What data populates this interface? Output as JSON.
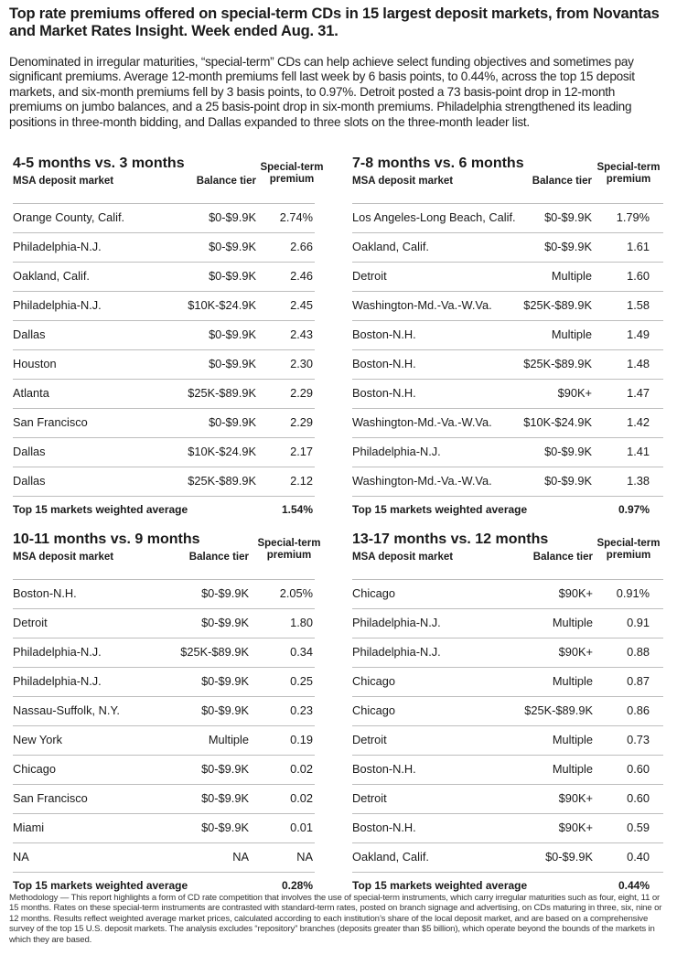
{
  "title": "Top rate premiums offered on special-term CDs in 15 largest deposit markets, from Novantas and Market Rates Insight. Week ended Aug. 31.",
  "intro": "Denominated in irregular maturities, “special-term” CDs can help achieve select funding objectives and sometimes pay significant premiums. Average 12-month premiums fell last week by 6 basis points, to 0.44%, across the top 15 deposit markets, and six-month premiums fell by 3 basis points, to 0.97%. Detroit posted a 73 basis-point drop in 12-month premiums on jumbo balances, and a 25 basis-point drop in six-month premiums. Philadelphia strengthened its leading positions in three-month bidding, and Dallas expanded to three slots on the three-month leader list.",
  "headers": {
    "market": "MSA deposit market",
    "tier": "Balance tier",
    "premium_line1": "Special-term",
    "premium_line2": "premium"
  },
  "panels": [
    {
      "title": "4-5 months vs. 3 months",
      "rows": [
        {
          "market": "Orange County, Calif.",
          "tier": "$0-$9.9K",
          "premium": "2.74%"
        },
        {
          "market": "Philadelphia-N.J.",
          "tier": "$0-$9.9K",
          "premium": "2.66"
        },
        {
          "market": "Oakland, Calif.",
          "tier": "$0-$9.9K",
          "premium": "2.46"
        },
        {
          "market": "Philadelphia-N.J.",
          "tier": "$10K-$24.9K",
          "premium": "2.45"
        },
        {
          "market": "Dallas",
          "tier": "$0-$9.9K",
          "premium": "2.43"
        },
        {
          "market": "Houston",
          "tier": "$0-$9.9K",
          "premium": "2.30"
        },
        {
          "market": "Atlanta",
          "tier": "$25K-$89.9K",
          "premium": "2.29"
        },
        {
          "market": "San Francisco",
          "tier": "$0-$9.9K",
          "premium": "2.29"
        },
        {
          "market": "Dallas",
          "tier": "$10K-$24.9K",
          "premium": "2.17"
        },
        {
          "market": "Dallas",
          "tier": "$25K-$89.9K",
          "premium": "2.12"
        }
      ],
      "avg_label": "Top 15 markets weighted average",
      "avg_value": "1.54%"
    },
    {
      "title": "7-8 months vs. 6 months",
      "rows": [
        {
          "market": "Los Angeles-Long Beach, Calif.",
          "tier": "$0-$9.9K",
          "premium": "1.79%"
        },
        {
          "market": "Oakland, Calif.",
          "tier": "$0-$9.9K",
          "premium": "1.61"
        },
        {
          "market": "Detroit",
          "tier": "Multiple",
          "premium": "1.60"
        },
        {
          "market": "Washington-Md.-Va.-W.Va.",
          "tier": "$25K-$89.9K",
          "premium": "1.58"
        },
        {
          "market": "Boston-N.H.",
          "tier": "Multiple",
          "premium": "1.49"
        },
        {
          "market": "Boston-N.H.",
          "tier": "$25K-$89.9K",
          "premium": "1.48"
        },
        {
          "market": "Boston-N.H.",
          "tier": "$90K+",
          "premium": "1.47"
        },
        {
          "market": "Washington-Md.-Va.-W.Va.",
          "tier": "$10K-$24.9K",
          "premium": "1.42"
        },
        {
          "market": "Philadelphia-N.J.",
          "tier": "$0-$9.9K",
          "premium": "1.41"
        },
        {
          "market": "Washington-Md.-Va.-W.Va.",
          "tier": "$0-$9.9K",
          "premium": "1.38"
        }
      ],
      "avg_label": "Top 15 markets weighted average",
      "avg_value": "0.97%"
    },
    {
      "title": "10-11 months vs. 9 months",
      "rows": [
        {
          "market": "Boston-N.H.",
          "tier": "$0-$9.9K",
          "premium": "2.05%"
        },
        {
          "market": "Detroit",
          "tier": "$0-$9.9K",
          "premium": "1.80"
        },
        {
          "market": "Philadelphia-N.J.",
          "tier": "$25K-$89.9K",
          "premium": "0.34"
        },
        {
          "market": "Philadelphia-N.J.",
          "tier": "$0-$9.9K",
          "premium": "0.25"
        },
        {
          "market": "Nassau-Suffolk, N.Y.",
          "tier": "$0-$9.9K",
          "premium": "0.23"
        },
        {
          "market": "New York",
          "tier": "Multiple",
          "premium": "0.19"
        },
        {
          "market": "Chicago",
          "tier": "$0-$9.9K",
          "premium": "0.02"
        },
        {
          "market": "San Francisco",
          "tier": "$0-$9.9K",
          "premium": "0.02"
        },
        {
          "market": "Miami",
          "tier": "$0-$9.9K",
          "premium": "0.01"
        },
        {
          "market": "NA",
          "tier": "NA",
          "premium": "NA"
        }
      ],
      "avg_label": "Top 15 markets weighted average",
      "avg_value": "0.28%"
    },
    {
      "title": "13-17 months vs. 12 months",
      "rows": [
        {
          "market": "Chicago",
          "tier": "$90K+",
          "premium": "0.91%"
        },
        {
          "market": "Philadelphia-N.J.",
          "tier": "Multiple",
          "premium": "0.91"
        },
        {
          "market": "Philadelphia-N.J.",
          "tier": "$90K+",
          "premium": "0.88"
        },
        {
          "market": "Chicago",
          "tier": "Multiple",
          "premium": "0.87"
        },
        {
          "market": "Chicago",
          "tier": "$25K-$89.9K",
          "premium": "0.86"
        },
        {
          "market": "Detroit",
          "tier": "Multiple",
          "premium": "0.73"
        },
        {
          "market": "Boston-N.H.",
          "tier": "Multiple",
          "premium": "0.60"
        },
        {
          "market": "Detroit",
          "tier": "$90K+",
          "premium": "0.60"
        },
        {
          "market": "Boston-N.H.",
          "tier": "$90K+",
          "premium": "0.59"
        },
        {
          "market": "Oakland, Calif.",
          "tier": "$0-$9.9K",
          "premium": "0.40"
        }
      ],
      "avg_label": "Top 15 markets weighted average",
      "avg_value": "0.44%"
    }
  ],
  "methodology": "Methodology — This report highlights a form of CD rate competition that involves the use of special-term instruments, which carry irregular maturities such as four, eight, 11 or 15 months. Rates on these special-term instruments are contrasted with standard-term rates, posted on branch signage and advertising, on CDs maturing in three, six, nine or 12 months. Results reflect weighted average market prices, calculated according to each institution’s share of the local deposit market, and are based on a comprehensive survey of the top 15 U.S. deposit markets. The analysis excludes “repository” branches (deposits greater than $5 billion), which operate beyond the bounds of the markets in which they are based."
}
